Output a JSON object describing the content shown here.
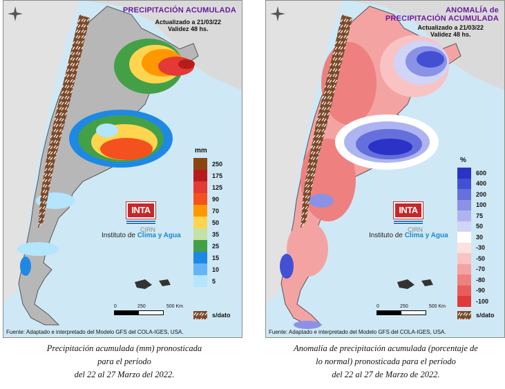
{
  "left_map": {
    "title": "PRECIPITACIÓN ACUMULADA",
    "updated": "Actualizado a 21/03/22",
    "validity": "Validez 48 hs.",
    "unit": "mm",
    "legend": [
      {
        "label": "250",
        "color": "#8b4513"
      },
      {
        "label": "175",
        "color": "#b71c1c"
      },
      {
        "label": "125",
        "color": "#e53935"
      },
      {
        "label": "90",
        "color": "#f4511e"
      },
      {
        "label": "70",
        "color": "#ff9800"
      },
      {
        "label": "50",
        "color": "#ffd54f"
      },
      {
        "label": "35",
        "color": "#c5e1a5"
      },
      {
        "label": "25",
        "color": "#43a047"
      },
      {
        "label": "15",
        "color": "#1e88e5"
      },
      {
        "label": "10",
        "color": "#64b5f6"
      },
      {
        "label": "5",
        "color": "#b3e5fc"
      }
    ],
    "nodata_label": "s/dato",
    "scale": {
      "ticks": [
        "0",
        "250",
        "500 Km"
      ]
    },
    "logo": {
      "brand": "INTA",
      "cirn": "CIRN",
      "institute_prefix": "Instituto de ",
      "institute_name": "Clima y Agua"
    },
    "source": "Fuente: Adaptado e interpretado del Modelo GFS del COLA-IGES, USA.",
    "caption": [
      "Precipitación acumulada (mm) pronosticada",
      "para el período",
      "del 22 al 27 Marzo del 2022."
    ]
  },
  "right_map": {
    "title_line1": "ANOMALÍA de",
    "title_line2": "PRECIPITACIÓN ACUMULADA",
    "updated": "Actualizado a 21/03/22",
    "validity": "Validez 48 hs.",
    "unit": "%",
    "legend": [
      {
        "label": "600",
        "color": "#2a32c8"
      },
      {
        "label": "400",
        "color": "#4450d4"
      },
      {
        "label": "200",
        "color": "#6570dc"
      },
      {
        "label": "100",
        "color": "#8a92e6"
      },
      {
        "label": "75",
        "color": "#adb4ef"
      },
      {
        "label": "50",
        "color": "#d0d4f7"
      },
      {
        "label": "30",
        "color": "#ffffff"
      },
      {
        "label": "-30",
        "color": "#fde0e0"
      },
      {
        "label": "-50",
        "color": "#f9c3c3"
      },
      {
        "label": "-70",
        "color": "#f4a3a3"
      },
      {
        "label": "-80",
        "color": "#ee8080"
      },
      {
        "label": "-90",
        "color": "#e85c5c"
      },
      {
        "label": "-100",
        "color": "#e03a3a"
      }
    ],
    "nodata_label": "s/dato",
    "scale": {
      "ticks": [
        "0",
        "250",
        "500 Km"
      ]
    },
    "logo": {
      "brand": "INTA",
      "cirn": "CIRN",
      "institute_prefix": "Instituto de ",
      "institute_name": "Clima y Agua"
    },
    "source": "Fuente: Adaptado e interpretado del Modelo GFS del COLA-IGES, USA.",
    "caption": [
      "Anomalía de precipitación acumulada (porcentaje de",
      "lo normal) pronosticada para el período",
      "del 22 al 27 de Marzo de 2022."
    ]
  }
}
